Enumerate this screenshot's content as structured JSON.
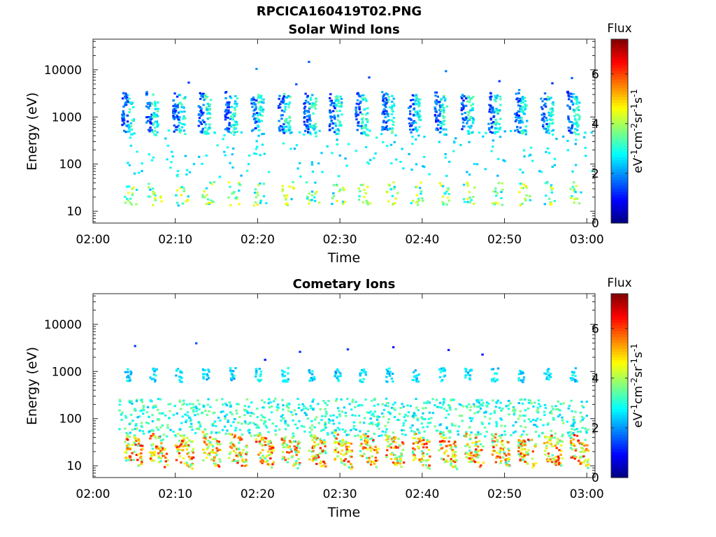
{
  "figure_title": "RPCICA160419T02.PNG",
  "chart_data": [
    {
      "type": "heatmap",
      "title": "Solar Wind Ions",
      "xlabel": "Time",
      "ylabel": "Energy (eV)",
      "xlim": [
        "02:00",
        "03:01"
      ],
      "ylim_log10": [
        0.75,
        4.65
      ],
      "x_ticks": [
        "02:00",
        "02:10",
        "02:20",
        "02:30",
        "02:40",
        "02:50",
        "03:00"
      ],
      "y_ticks": [
        "10",
        "100",
        "1000",
        "10000"
      ],
      "y_tick_values": [
        10,
        100,
        1000,
        10000
      ],
      "colorbar": {
        "label_top": "Flux",
        "unit_label": "eV-1cm-2sr-1s-1",
        "ticks": [
          "0",
          "2",
          "4",
          "6"
        ],
        "tick_values": [
          0,
          2,
          4,
          6
        ],
        "range": [
          0,
          7.4
        ],
        "colormap": "jet"
      },
      "bursts": {
        "minutes": [
          3.7,
          6.6,
          9.9,
          13.0,
          16.2,
          19.4,
          22.7,
          25.8,
          28.9,
          32.1,
          35.3,
          38.5,
          41.7,
          44.9,
          48.2,
          51.4,
          54.6,
          57.8
        ],
        "core_log10E": [
          2.85,
          3.35
        ],
        "core_flux": [
          2.2,
          3.6
        ],
        "low_band_log10E": [
          1.1,
          1.6
        ],
        "low_band_flux": [
          2.3,
          4.8
        ]
      }
    },
    {
      "type": "heatmap",
      "title": "Cometary Ions",
      "xlabel": "Time",
      "ylabel": "Energy (eV)",
      "xlim": [
        "02:00",
        "03:01"
      ],
      "ylim_log10": [
        0.75,
        4.65
      ],
      "x_ticks": [
        "02:00",
        "02:10",
        "02:20",
        "02:30",
        "02:40",
        "02:50",
        "03:00"
      ],
      "y_ticks": [
        "10",
        "100",
        "1000",
        "10000"
      ],
      "y_tick_values": [
        10,
        100,
        1000,
        10000
      ],
      "colorbar": {
        "label_top": "Flux",
        "unit_label": "eV-1cm-2sr-1s-1",
        "ticks": [
          "0",
          "2",
          "4",
          "6"
        ],
        "tick_values": [
          0,
          2,
          4,
          6
        ],
        "range": [
          0,
          7.4
        ],
        "colormap": "jet"
      },
      "bursts": {
        "minutes": [
          3.7,
          6.8,
          9.9,
          13.2,
          16.4,
          19.6,
          22.8,
          26.0,
          29.2,
          32.3,
          35.5,
          38.7,
          41.9,
          45.1,
          48.3,
          51.5,
          54.7,
          57.9
        ],
        "high_log10E": [
          2.75,
          3.05
        ],
        "high_flux": [
          2.0,
          3.0
        ],
        "core_log10E": [
          0.9,
          1.5
        ],
        "core_flux": [
          4.5,
          6.5
        ],
        "mid_log10E": [
          1.6,
          2.4
        ],
        "mid_flux": [
          2.3,
          3.8
        ]
      }
    }
  ]
}
